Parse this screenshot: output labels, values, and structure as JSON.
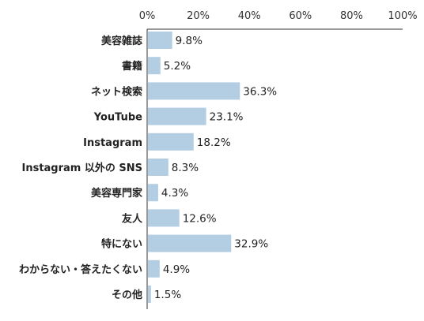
{
  "chart_data": {
    "type": "bar",
    "orientation": "horizontal",
    "categories": [
      "美容雑誌",
      "書籍",
      "ネット検索",
      "YouTube",
      "Instagram",
      "Instagram 以外の SNS",
      "美容専門家",
      "友人",
      "特にない",
      "わからない・答えたくない",
      "その他"
    ],
    "values": [
      9.8,
      5.2,
      36.3,
      23.1,
      18.2,
      8.3,
      4.3,
      12.6,
      32.9,
      4.9,
      1.5
    ],
    "value_labels": [
      "9.8%",
      "5.2%",
      "36.3%",
      "23.1%",
      "18.2%",
      "8.3%",
      "4.3%",
      "12.6%",
      "32.9%",
      "4.9%",
      "1.5%"
    ],
    "x_ticks": [
      "0%",
      "20%",
      "40%",
      "60%",
      "80%",
      "100%"
    ],
    "xlim": [
      0,
      100
    ],
    "bar_color": "#b3cde3",
    "axis_color": "#333333",
    "title": "",
    "xlabel": "",
    "ylabel": ""
  }
}
